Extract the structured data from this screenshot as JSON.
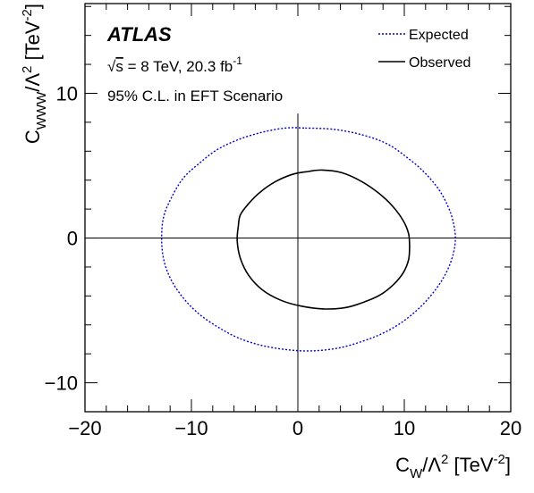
{
  "chart_data": {
    "type": "line",
    "experiment_label": "ATLAS",
    "energy_label": {
      "sqrt": "s",
      "text": " = 8 TeV, 20.3 fb",
      "sup": "-1"
    },
    "cl_label": "95% C.L. in EFT Scenario",
    "xlabel": {
      "base": "C",
      "sub": "W",
      "mid": "/Λ",
      "sup2": "2",
      "unit_open": "  [TeV",
      "unit_sup": "-2",
      "unit_close": "]"
    },
    "ylabel": {
      "base": "C",
      "sub": "WWW",
      "mid": "/Λ",
      "sup2": "2",
      "unit_open": "  [TeV",
      "unit_sup": "-2",
      "unit_close": "]"
    },
    "xlim": [
      -20,
      20
    ],
    "ylim": [
      -12,
      16.2
    ],
    "xticks": [
      -20,
      -10,
      0,
      10,
      20
    ],
    "xtick_labels": [
      "−20",
      "−10",
      "0",
      "10",
      "20"
    ],
    "yticks": [
      -10,
      0,
      10
    ],
    "ytick_labels": [
      "−10",
      "0",
      "10"
    ],
    "x_minor_step": 2,
    "y_minor_step": 2,
    "grid": false,
    "legend_position": "top-right",
    "series": [
      {
        "name": "Expected",
        "style": "dotted",
        "color": "#0000cc",
        "x": [
          0.7,
          3.5,
          6.2,
          8.4,
          10.2,
          11.8,
          13.2,
          14.1,
          14.6,
          14.8,
          14.6,
          14.0,
          13.0,
          11.6,
          10.0,
          8.2,
          6.2,
          3.8,
          1.2,
          -1.2,
          -3.5,
          -5.6,
          -7.4,
          -9.2,
          -10.7,
          -11.9,
          -12.6,
          -12.8,
          -12.6,
          -11.8,
          -10.7,
          -9.2,
          -7.6,
          -5.6,
          -3.4,
          -1.2,
          0.7
        ],
        "y": [
          7.6,
          7.5,
          7.1,
          6.5,
          5.6,
          4.6,
          3.4,
          2.2,
          1.1,
          0.0,
          -1.1,
          -2.3,
          -3.5,
          -4.7,
          -5.7,
          -6.5,
          -7.1,
          -7.6,
          -7.8,
          -7.7,
          -7.4,
          -6.9,
          -6.2,
          -5.3,
          -4.2,
          -2.9,
          -1.5,
          0.0,
          1.5,
          2.9,
          4.2,
          5.2,
          6.1,
          6.8,
          7.3,
          7.6,
          7.6
        ]
      },
      {
        "name": "Observed",
        "style": "solid",
        "color": "#000000",
        "x": [
          2.3,
          4.2,
          6.0,
          7.6,
          8.9,
          9.9,
          10.4,
          10.5,
          10.4,
          9.9,
          9.0,
          7.8,
          6.3,
          4.5,
          2.4,
          0.3,
          -1.6,
          -3.3,
          -4.6,
          -5.4,
          -5.7,
          -5.6,
          -5.4,
          -4.6,
          -3.5,
          -2.1,
          -0.5,
          1.0,
          2.3
        ],
        "y": [
          4.7,
          4.5,
          3.9,
          3.1,
          2.2,
          1.2,
          0.3,
          -0.6,
          -1.5,
          -2.4,
          -3.2,
          -3.9,
          -4.4,
          -4.8,
          -4.9,
          -4.7,
          -4.3,
          -3.6,
          -2.6,
          -1.4,
          -0.2,
          0.8,
          1.6,
          2.4,
          3.2,
          3.9,
          4.4,
          4.6,
          4.7
        ]
      }
    ]
  }
}
